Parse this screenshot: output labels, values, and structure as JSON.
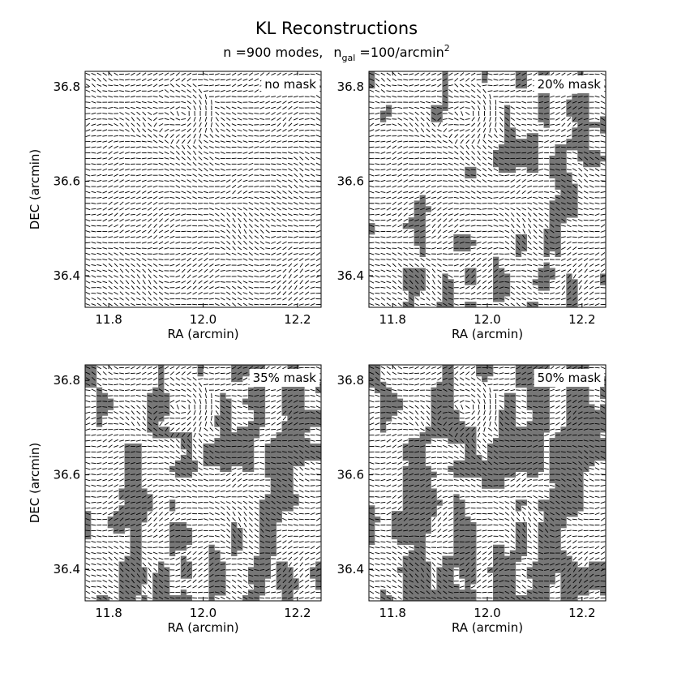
{
  "figure": {
    "title": "KL Reconstructions",
    "subtitle": {
      "n_label": "n =900 modes,",
      "ngal_main": "n",
      "ngal_sub": "gal",
      "ngal_rest": " =100/arcmin",
      "ngal_sup": "2"
    }
  },
  "chart_data": [
    {
      "type": "shear-map",
      "panel_label": "no mask",
      "mask_fraction": 0.0,
      "xlabel": "RA (arcmin)",
      "ylabel": "DEC (arcmin)",
      "xlim": [
        11.75,
        12.25
      ],
      "ylim": [
        36.333,
        36.833
      ],
      "xticks": [
        "11.8",
        "12.0",
        "12.2"
      ],
      "yticks": [
        "36.4",
        "36.6",
        "36.8"
      ],
      "mask_color": "#777777"
    },
    {
      "type": "shear-map",
      "panel_label": "20% mask",
      "mask_fraction": 0.2,
      "xlabel": "RA (arcmin)",
      "ylabel": "",
      "xlim": [
        11.75,
        12.25
      ],
      "ylim": [
        36.333,
        36.833
      ],
      "xticks": [
        "11.8",
        "12.0",
        "12.2"
      ],
      "yticks": [
        "36.4",
        "36.6",
        "36.8"
      ],
      "mask_color": "#777777"
    },
    {
      "type": "shear-map",
      "panel_label": "35% mask",
      "mask_fraction": 0.35,
      "xlabel": "RA (arcmin)",
      "ylabel": "DEC (arcmin)",
      "xlim": [
        11.75,
        12.25
      ],
      "ylim": [
        36.333,
        36.833
      ],
      "xticks": [
        "11.8",
        "12.0",
        "12.2"
      ],
      "yticks": [
        "36.4",
        "36.6",
        "36.8"
      ],
      "mask_color": "#777777"
    },
    {
      "type": "shear-map",
      "panel_label": "50% mask",
      "mask_fraction": 0.5,
      "xlabel": "RA (arcmin)",
      "ylabel": "",
      "xlim": [
        11.75,
        12.25
      ],
      "ylim": [
        36.333,
        36.833
      ],
      "xticks": [
        "11.8",
        "12.0",
        "12.2"
      ],
      "yticks": [
        "36.4",
        "36.6",
        "36.8"
      ],
      "mask_color": "#777777"
    }
  ]
}
